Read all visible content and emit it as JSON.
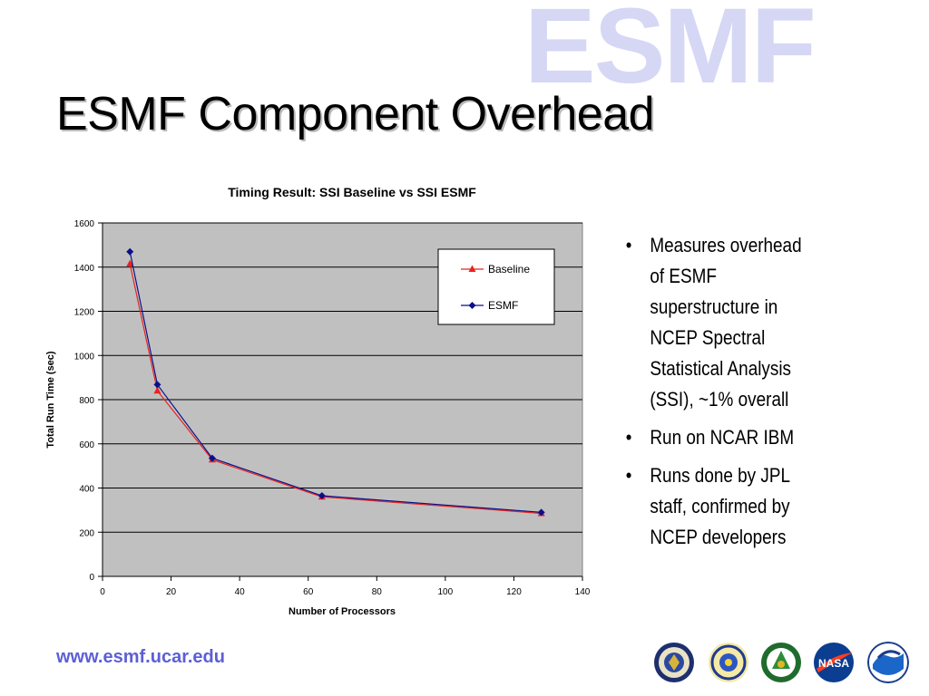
{
  "watermark": "ESMF",
  "slide_title": "ESMF Component Overhead",
  "bullets": [
    "Measures overhead of ESMF superstructure in NCEP Spectral Statistical Analysis (SSI), ~1% overall",
    "Run on NCAR IBM",
    "Runs done by JPL staff,  confirmed by NCEP developers"
  ],
  "footer_url": "www.esmf.ucar.edu",
  "logos": [
    "dod-seal-icon",
    "nsf-seal-icon",
    "doe-seal-icon",
    "nasa-logo-icon",
    "noaa-logo-icon"
  ],
  "chart_data": {
    "type": "line",
    "title": "Timing Result: SSI Baseline vs SSI ESMF",
    "xlabel": "Number of Processors",
    "ylabel": "Total Run Time (sec)",
    "xlim": [
      0,
      140
    ],
    "ylim": [
      0,
      1600
    ],
    "x_ticks": [
      0,
      20,
      40,
      60,
      80,
      100,
      120,
      140
    ],
    "y_ticks": [
      0,
      200,
      400,
      600,
      800,
      1000,
      1200,
      1400,
      1600
    ],
    "grid": "horizontal",
    "legend_position": "top-right",
    "plot_background": "#c0c0c0",
    "series": [
      {
        "name": "Baseline",
        "color": "#e8231f",
        "marker": "triangle",
        "x": [
          8,
          16,
          32,
          64,
          128
        ],
        "values": [
          1415,
          840,
          528,
          360,
          285
        ]
      },
      {
        "name": "ESMF",
        "color": "#0a0f8a",
        "marker": "diamond",
        "x": [
          8,
          16,
          32,
          64,
          128
        ],
        "values": [
          1470,
          868,
          535,
          365,
          290
        ]
      }
    ]
  }
}
